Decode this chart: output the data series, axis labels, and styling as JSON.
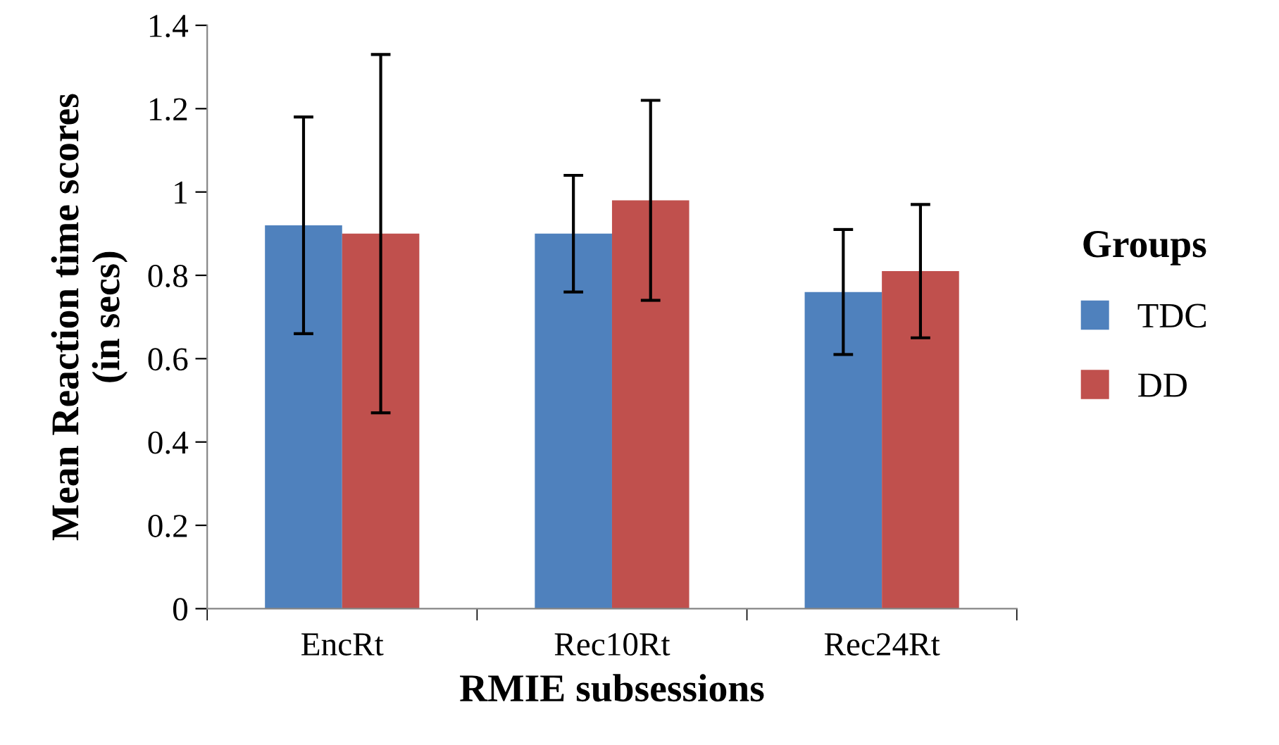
{
  "chart_data": {
    "type": "bar",
    "xlabel": "RMIE subsessions",
    "ylabel": "Mean Reaction time scores\n(in secs)",
    "legend_title": "Groups",
    "categories": [
      "EncRt",
      "Rec10Rt",
      "Rec24Rt"
    ],
    "series": [
      {
        "name": "TDC",
        "color": "#4f81bd",
        "values": [
          0.92,
          0.9,
          0.76
        ],
        "errors": [
          0.26,
          0.14,
          0.15
        ]
      },
      {
        "name": "DD",
        "color": "#c0504d",
        "values": [
          0.9,
          0.98,
          0.81
        ],
        "errors": [
          0.43,
          0.24,
          0.16
        ]
      }
    ],
    "ylim": [
      0,
      1.4
    ],
    "yticks": [
      0,
      0.2,
      0.4,
      0.6,
      0.8,
      1,
      1.2,
      1.4
    ],
    "grid": false,
    "legend": "right"
  }
}
